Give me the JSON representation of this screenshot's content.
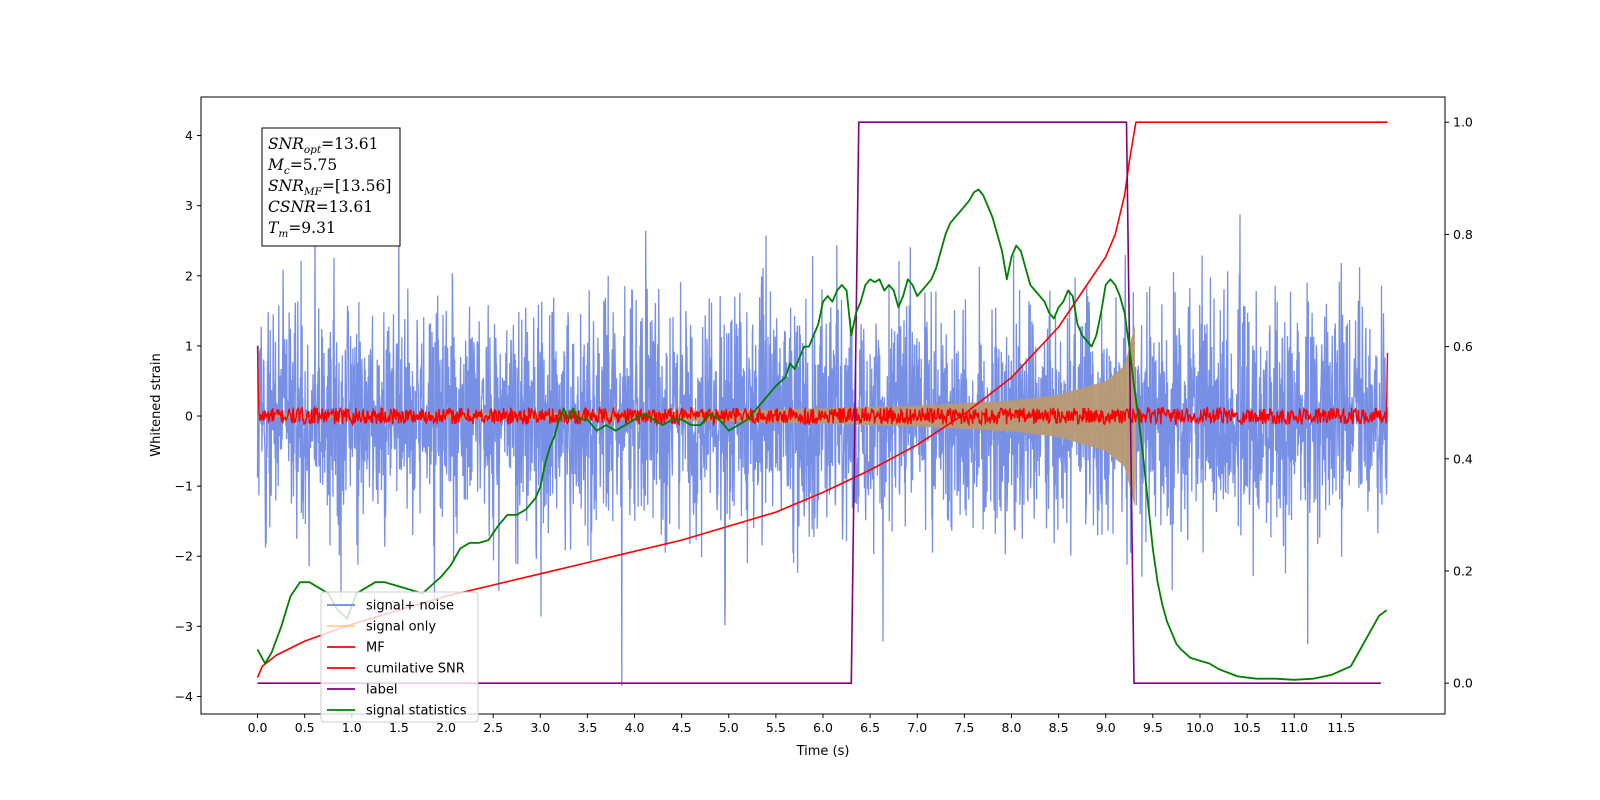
{
  "chart_data": {
    "type": "line",
    "xlabel": "Time (s)",
    "ylabel": "Whitened strain",
    "xlim": [
      -0.6,
      12.6
    ],
    "ylim": [
      -4.25,
      4.55
    ],
    "y2lim": [
      -0.055,
      1.045
    ],
    "xticks": [
      "0.0",
      "0.5",
      "1.0",
      "1.5",
      "2.0",
      "2.5",
      "3.0",
      "3.5",
      "4.0",
      "4.5",
      "5.0",
      "5.5",
      "6.0",
      "6.5",
      "7.0",
      "7.5",
      "8.0",
      "8.5",
      "9.0",
      "9.5",
      "10.0",
      "10.5",
      "11.0",
      "11.5"
    ],
    "yticks": [
      "4",
      "3",
      "2",
      "1",
      "0",
      "−1",
      "−2",
      "−3",
      "−4"
    ],
    "y2ticks": [
      "1.0",
      "0.8",
      "0.6",
      "0.4",
      "0.2",
      "0.0"
    ],
    "info_box": {
      "snr_opt": "=13.61",
      "mc": "=5.75",
      "snr_mf": "=[13.56]",
      "csnr": "=13.61",
      "tm": "=9.31"
    },
    "legend_position": "lower-left",
    "series": [
      {
        "name": "signal+ noise",
        "color": "#6b86e3",
        "axis": "left",
        "kind": "noise band",
        "x_range": [
          0,
          11.99
        ],
        "typical_amplitude": 2.2,
        "peak_range": [
          -3.85,
          4.18
        ]
      },
      {
        "name": "signal only",
        "color": "#ffc065",
        "axis": "left",
        "kind": "chirp envelope",
        "x_range": [
          0,
          9.31
        ],
        "envelope": {
          "x": [
            0,
            2,
            4,
            5,
            6,
            7,
            8,
            8.5,
            9,
            9.2,
            9.31
          ],
          "amp": [
            0.02,
            0.04,
            0.06,
            0.08,
            0.11,
            0.15,
            0.22,
            0.3,
            0.5,
            0.72,
            1.3
          ]
        }
      },
      {
        "name": "MF",
        "color": "#ff0000",
        "axis": "left",
        "kind": "noisy flat",
        "x_range": [
          0,
          11.99
        ],
        "level": 0.0,
        "noise_amplitude": 0.12,
        "edge_start": 1.0,
        "edge_end": 0.9
      },
      {
        "name": "cumilative SNR",
        "color": "#ff0000",
        "axis": "right",
        "x": [
          0,
          0.05,
          0.2,
          0.5,
          1.0,
          1.5,
          2.0,
          2.5,
          3.0,
          3.5,
          4.0,
          4.5,
          5.0,
          5.5,
          6.0,
          6.5,
          7.0,
          7.5,
          8.0,
          8.5,
          9.0,
          9.1,
          9.2,
          9.25,
          9.3,
          9.32,
          11.99
        ],
        "y": [
          0.01,
          0.03,
          0.05,
          0.075,
          0.105,
          0.13,
          0.155,
          0.175,
          0.195,
          0.215,
          0.235,
          0.255,
          0.28,
          0.305,
          0.34,
          0.38,
          0.425,
          0.48,
          0.545,
          0.635,
          0.76,
          0.8,
          0.87,
          0.93,
          0.98,
          1.0,
          1.0
        ]
      },
      {
        "name": "label",
        "color": "#800080",
        "axis": "right",
        "x": [
          0,
          6.3,
          6.38,
          9.22,
          9.3,
          11.92
        ],
        "y": [
          0.0,
          0.0,
          1.0,
          1.0,
          0.0,
          0.0
        ]
      },
      {
        "name": "signal statistics",
        "color": "#008000",
        "axis": "right",
        "x": [
          0,
          0.08,
          0.15,
          0.25,
          0.35,
          0.45,
          0.55,
          0.65,
          0.75,
          0.85,
          0.95,
          1.05,
          1.15,
          1.25,
          1.35,
          1.45,
          1.55,
          1.65,
          1.75,
          1.85,
          1.95,
          2.05,
          2.15,
          2.25,
          2.35,
          2.45,
          2.55,
          2.65,
          2.75,
          2.85,
          2.95,
          3.0,
          3.05,
          3.1,
          3.15,
          3.2,
          3.25,
          3.3,
          3.35,
          3.4,
          3.5,
          3.6,
          3.7,
          3.8,
          3.9,
          4.0,
          4.1,
          4.2,
          4.3,
          4.4,
          4.5,
          4.6,
          4.7,
          4.8,
          4.9,
          5.0,
          5.1,
          5.2,
          5.3,
          5.4,
          5.5,
          5.6,
          5.65,
          5.7,
          5.75,
          5.8,
          5.85,
          5.9,
          5.95,
          6.0,
          6.05,
          6.1,
          6.15,
          6.2,
          6.25,
          6.3,
          6.35,
          6.4,
          6.45,
          6.5,
          6.55,
          6.6,
          6.65,
          6.7,
          6.75,
          6.8,
          6.85,
          6.9,
          6.95,
          7.0,
          7.05,
          7.1,
          7.15,
          7.2,
          7.25,
          7.3,
          7.35,
          7.4,
          7.45,
          7.5,
          7.55,
          7.6,
          7.65,
          7.7,
          7.75,
          7.8,
          7.85,
          7.9,
          7.95,
          8.0,
          8.05,
          8.1,
          8.15,
          8.2,
          8.25,
          8.3,
          8.35,
          8.4,
          8.45,
          8.5,
          8.55,
          8.6,
          8.65,
          8.7,
          8.75,
          8.8,
          8.85,
          8.9,
          8.95,
          9.0,
          9.05,
          9.1,
          9.15,
          9.2,
          9.25,
          9.3,
          9.35,
          9.4,
          9.45,
          9.5,
          9.55,
          9.6,
          9.65,
          9.7,
          9.75,
          9.8,
          9.9,
          10.0,
          10.1,
          10.2,
          10.4,
          10.6,
          10.8,
          11.0,
          11.2,
          11.4,
          11.6,
          11.7,
          11.8,
          11.9,
          11.98
        ],
        "y": [
          0.06,
          0.035,
          0.055,
          0.1,
          0.155,
          0.18,
          0.18,
          0.17,
          0.16,
          0.13,
          0.115,
          0.16,
          0.17,
          0.18,
          0.18,
          0.175,
          0.17,
          0.165,
          0.16,
          0.175,
          0.19,
          0.21,
          0.24,
          0.25,
          0.25,
          0.255,
          0.28,
          0.3,
          0.3,
          0.31,
          0.33,
          0.35,
          0.39,
          0.42,
          0.44,
          0.47,
          0.49,
          0.47,
          0.49,
          0.47,
          0.47,
          0.45,
          0.46,
          0.45,
          0.46,
          0.47,
          0.48,
          0.47,
          0.46,
          0.47,
          0.47,
          0.46,
          0.46,
          0.48,
          0.47,
          0.45,
          0.46,
          0.47,
          0.49,
          0.51,
          0.53,
          0.545,
          0.57,
          0.56,
          0.58,
          0.6,
          0.6,
          0.62,
          0.64,
          0.68,
          0.69,
          0.68,
          0.7,
          0.71,
          0.7,
          0.62,
          0.66,
          0.68,
          0.71,
          0.72,
          0.715,
          0.72,
          0.7,
          0.71,
          0.7,
          0.67,
          0.69,
          0.72,
          0.71,
          0.69,
          0.7,
          0.71,
          0.72,
          0.74,
          0.77,
          0.8,
          0.82,
          0.83,
          0.84,
          0.85,
          0.86,
          0.875,
          0.88,
          0.87,
          0.85,
          0.83,
          0.8,
          0.77,
          0.72,
          0.76,
          0.78,
          0.77,
          0.74,
          0.71,
          0.7,
          0.69,
          0.68,
          0.66,
          0.65,
          0.67,
          0.68,
          0.7,
          0.69,
          0.64,
          0.62,
          0.61,
          0.6,
          0.62,
          0.66,
          0.71,
          0.72,
          0.71,
          0.69,
          0.66,
          0.6,
          0.53,
          0.47,
          0.4,
          0.32,
          0.24,
          0.18,
          0.14,
          0.11,
          0.09,
          0.07,
          0.06,
          0.045,
          0.04,
          0.035,
          0.025,
          0.012,
          0.008,
          0.008,
          0.006,
          0.008,
          0.015,
          0.03,
          0.06,
          0.09,
          0.12,
          0.13
        ]
      }
    ]
  }
}
